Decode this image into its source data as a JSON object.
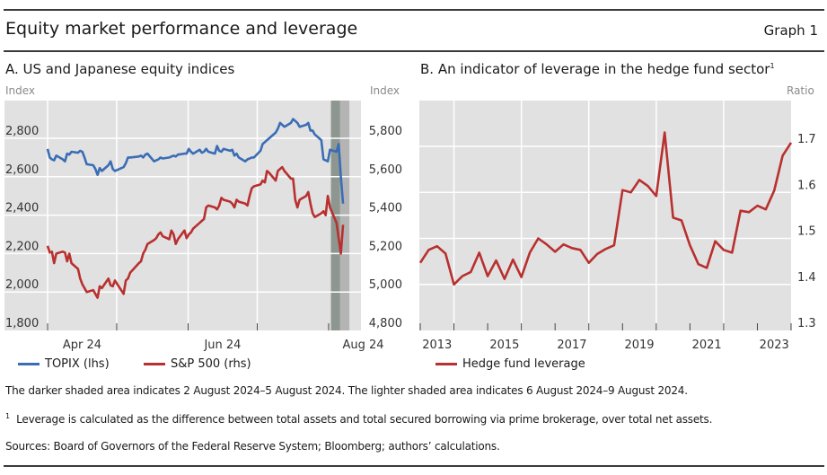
{
  "header": {
    "title": "Equity market performance and leverage",
    "graph_label": "Graph 1"
  },
  "panels": {
    "a": {
      "title": "A. US and Japanese equity indices",
      "left_unit": "Index",
      "right_unit": "Index"
    },
    "b": {
      "title": "B. An indicator of leverage in the hedge fund sector",
      "title_sup": "1",
      "right_unit": "Ratio"
    }
  },
  "legend": {
    "topix": "TOPIX (lhs)",
    "sp500": "S&P 500 (rhs)",
    "hedge": "Hedge fund leverage"
  },
  "colors": {
    "topix": "#3a6db5",
    "sp500": "#b8302f",
    "hedge": "#b8302f",
    "plot_bg": "#e1e1e1",
    "grid": "#ffffff",
    "shade_dark": "#8d978f",
    "shade_light": "#b4b4b4"
  },
  "notes": {
    "shading": "The darker shaded area indicates 2 August 2024–5 August 2024. The lighter shaded area indicates 6 August 2024–9 August 2024.",
    "footnote_mark": "1",
    "footnote": "Leverage is calculated as the difference between total assets and total secured borrowing via prime brokerage, over total net assets.",
    "sources": "Sources: Board of Governors of the Federal Reserve System; Bloomberg; authors’ calculations."
  },
  "chart_data": [
    {
      "type": "line",
      "title": "A. US and Japanese equity indices",
      "x_range": [
        "2024-04-01",
        "2024-08-15"
      ],
      "x_tick_labels": [
        "Apr 24",
        "Jun 24",
        "Aug 24"
      ],
      "x_month_boundaries": [
        "2024-04-01",
        "2024-05-01",
        "2024-06-01",
        "2024-07-01",
        "2024-08-01"
      ],
      "ylabel_left": "Index",
      "ylim_left": [
        1800,
        2900
      ],
      "yticks_left": [
        "1,800",
        "2,000",
        "2,200",
        "2,400",
        "2,600",
        "2,800"
      ],
      "ylabel_right": "Index",
      "ylim_right": [
        4800,
        5900
      ],
      "yticks_right": [
        "4,800",
        "5,000",
        "5,200",
        "5,400",
        "5,600",
        "5,800"
      ],
      "shaded_periods": [
        {
          "from": "2024-08-02",
          "to": "2024-08-05",
          "shade": "dark"
        },
        {
          "from": "2024-08-06",
          "to": "2024-08-09",
          "shade": "light"
        }
      ],
      "grid": true,
      "legend_position": "bottom",
      "series": [
        {
          "name": "TOPIX (lhs)",
          "axis": "left",
          "x_day_offset": [
            0,
            1,
            2,
            3,
            4,
            7,
            8,
            9,
            10,
            11,
            14,
            15,
            16,
            17,
            18,
            21,
            22,
            23,
            24,
            25,
            28,
            29,
            30,
            31,
            35,
            36,
            37,
            38,
            42,
            43,
            44,
            45,
            46,
            49,
            50,
            51,
            52,
            53,
            56,
            57,
            58,
            59,
            60,
            63,
            64,
            65,
            66,
            67,
            70,
            71,
            72,
            73,
            74,
            77,
            78,
            79,
            80,
            81,
            84,
            85,
            86,
            87,
            88,
            91,
            92,
            93,
            94,
            95,
            98,
            99,
            100,
            101,
            102,
            105,
            106,
            107,
            108,
            109,
            112,
            113,
            114,
            115,
            116,
            119,
            120,
            121,
            122,
            123,
            126,
            127,
            128,
            129,
            130,
            133,
            134,
            135,
            136
          ],
          "values": [
            2745,
            2700,
            2690,
            2685,
            2710,
            2690,
            2680,
            2720,
            2715,
            2730,
            2725,
            2735,
            2730,
            2700,
            2665,
            2660,
            2640,
            2610,
            2645,
            2630,
            2660,
            2680,
            2640,
            2630,
            2650,
            2670,
            2700,
            2700,
            2705,
            2710,
            2700,
            2715,
            2720,
            2680,
            2685,
            2690,
            2700,
            2695,
            2700,
            2705,
            2710,
            2705,
            2715,
            2720,
            2720,
            2745,
            2730,
            2720,
            2740,
            2725,
            2730,
            2745,
            2730,
            2720,
            2760,
            2735,
            2730,
            2745,
            2735,
            2740,
            2710,
            2720,
            2700,
            2680,
            2690,
            2695,
            2700,
            2700,
            2735,
            2770,
            2780,
            2790,
            2800,
            2830,
            2850,
            2880,
            2870,
            2860,
            2880,
            2900,
            2890,
            2880,
            2860,
            2870,
            2880,
            2840,
            2840,
            2820,
            2790,
            2690,
            2685,
            2680,
            2740,
            2730,
            2770,
            2600,
            2460
          ]
        },
        {
          "name": "S&P 500 (rhs)",
          "axis": "right",
          "x_day_offset": [
            0,
            1,
            2,
            3,
            4,
            7,
            8,
            9,
            10,
            11,
            14,
            15,
            16,
            17,
            18,
            21,
            22,
            23,
            24,
            25,
            28,
            29,
            30,
            31,
            35,
            36,
            37,
            38,
            42,
            43,
            44,
            45,
            46,
            49,
            50,
            51,
            52,
            53,
            56,
            57,
            58,
            59,
            60,
            63,
            64,
            65,
            66,
            67,
            70,
            71,
            72,
            73,
            74,
            77,
            78,
            79,
            80,
            81,
            84,
            85,
            86,
            87,
            88,
            91,
            92,
            93,
            94,
            95,
            98,
            99,
            100,
            101,
            102,
            105,
            106,
            107,
            108,
            109,
            112,
            113,
            114,
            115,
            116,
            119,
            120,
            121,
            122,
            123,
            126,
            127,
            128,
            129,
            130,
            133,
            134,
            135,
            136
          ],
          "values": [
            5240,
            5205,
            5210,
            5150,
            5200,
            5210,
            5205,
            5160,
            5200,
            5150,
            5120,
            5070,
            5040,
            5020,
            5000,
            5010,
            4990,
            4970,
            5030,
            5020,
            5070,
            5035,
            5030,
            5060,
            4990,
            5060,
            5070,
            5100,
            5150,
            5160,
            5200,
            5220,
            5250,
            5270,
            5280,
            5300,
            5310,
            5290,
            5275,
            5320,
            5300,
            5250,
            5275,
            5320,
            5280,
            5300,
            5310,
            5330,
            5360,
            5370,
            5380,
            5440,
            5450,
            5440,
            5430,
            5450,
            5490,
            5480,
            5470,
            5460,
            5440,
            5480,
            5470,
            5460,
            5450,
            5500,
            5540,
            5550,
            5560,
            5580,
            5570,
            5630,
            5620,
            5580,
            5630,
            5640,
            5650,
            5630,
            5590,
            5590,
            5480,
            5440,
            5480,
            5500,
            5520,
            5460,
            5410,
            5390,
            5410,
            5420,
            5400,
            5500,
            5440,
            5360,
            5280,
            5200,
            5350
          ]
        }
      ]
    },
    {
      "type": "line",
      "title": "B. An indicator of leverage in the hedge fund sector",
      "xlabel": "",
      "ylabel": "Ratio",
      "x_tick_labels": [
        "2013",
        "2015",
        "2017",
        "2019",
        "2021",
        "2023"
      ],
      "x_range": [
        2013.0,
        2024.0
      ],
      "ylim": [
        1.3,
        1.75
      ],
      "yticks": [
        "1.3",
        "1.4",
        "1.5",
        "1.6",
        "1.7"
      ],
      "grid": true,
      "legend_position": "bottom",
      "series": [
        {
          "name": "Hedge fund leverage",
          "x": [
            2013.0,
            2013.25,
            2013.5,
            2013.75,
            2014.0,
            2014.25,
            2014.5,
            2014.75,
            2015.0,
            2015.25,
            2015.5,
            2015.75,
            2016.0,
            2016.25,
            2016.5,
            2016.75,
            2017.0,
            2017.25,
            2017.5,
            2017.75,
            2018.0,
            2018.25,
            2018.5,
            2018.75,
            2019.0,
            2019.25,
            2019.5,
            2019.75,
            2020.0,
            2020.25,
            2020.5,
            2020.75,
            2021.0,
            2021.25,
            2021.5,
            2021.75,
            2022.0,
            2022.25,
            2022.5,
            2022.75,
            2023.0,
            2023.25,
            2023.5,
            2023.75,
            2024.0
          ],
          "values": [
            1.447,
            1.475,
            1.483,
            1.467,
            1.4,
            1.418,
            1.427,
            1.469,
            1.418,
            1.452,
            1.412,
            1.454,
            1.416,
            1.469,
            1.5,
            1.487,
            1.471,
            1.487,
            1.479,
            1.475,
            1.447,
            1.466,
            1.477,
            1.485,
            1.605,
            1.6,
            1.627,
            1.614,
            1.592,
            1.73,
            1.545,
            1.539,
            1.485,
            1.444,
            1.436,
            1.494,
            1.475,
            1.469,
            1.56,
            1.557,
            1.571,
            1.563,
            1.604,
            1.68,
            1.708
          ]
        }
      ]
    }
  ]
}
